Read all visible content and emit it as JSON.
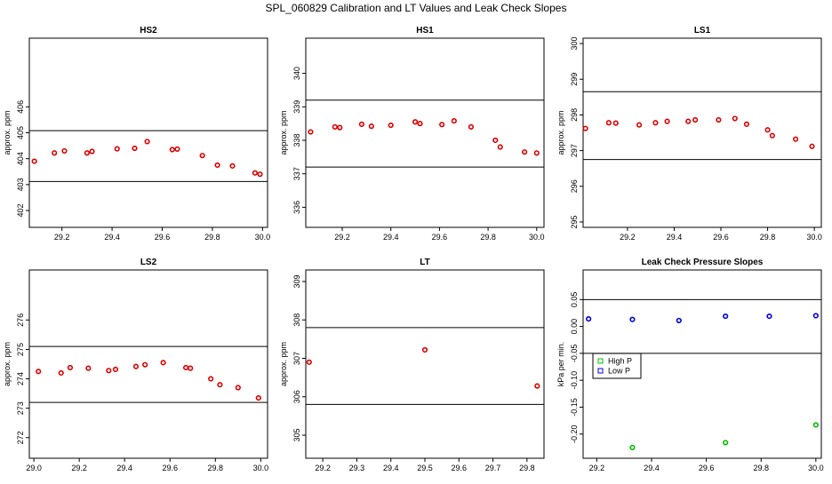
{
  "figure": {
    "title": "SPL_060829  Calibration and LT Values and Leak Check Slopes"
  },
  "chart_data": [
    {
      "id": "hs2",
      "type": "scatter",
      "title": "HS2",
      "ylabel": "approx. ppm",
      "xlim": [
        29.07,
        30.02
      ],
      "ylim": [
        401.35,
        408.65
      ],
      "xticks": [
        "29.2",
        "29.4",
        "29.6",
        "29.8",
        "30.0"
      ],
      "yticks": [
        "402",
        "403",
        "404",
        "405",
        "406"
      ],
      "hlines": [
        405.08,
        403.12
      ],
      "series": [
        {
          "color": "#dd0000",
          "marker": "circle",
          "x": [
            29.09,
            29.17,
            29.21,
            29.3,
            29.32,
            29.42,
            29.49,
            29.54,
            29.64,
            29.66,
            29.76,
            29.82,
            29.88,
            29.97,
            29.99
          ],
          "y": [
            403.9,
            404.22,
            404.3,
            404.22,
            404.28,
            404.38,
            404.4,
            404.66,
            404.35,
            404.37,
            404.12,
            403.75,
            403.72,
            403.45,
            403.4
          ]
        }
      ]
    },
    {
      "id": "hs1",
      "type": "scatter",
      "title": "HS1",
      "ylabel": "approx. ppm",
      "xlim": [
        29.05,
        30.03
      ],
      "ylim": [
        335.4,
        341.05
      ],
      "xticks": [
        "29.2",
        "29.4",
        "29.6",
        "29.8",
        "30.0"
      ],
      "yticks": [
        "336",
        "337",
        "338",
        "339",
        "340"
      ],
      "hlines": [
        339.2,
        337.2
      ],
      "series": [
        {
          "color": "#dd0000",
          "marker": "circle",
          "x": [
            29.07,
            29.17,
            29.19,
            29.28,
            29.32,
            29.4,
            29.5,
            29.52,
            29.61,
            29.66,
            29.73,
            29.83,
            29.85,
            29.95,
            30.0
          ],
          "y": [
            338.25,
            338.4,
            338.38,
            338.48,
            338.42,
            338.45,
            338.55,
            338.5,
            338.47,
            338.58,
            338.4,
            338.0,
            337.8,
            337.65,
            337.62
          ]
        }
      ]
    },
    {
      "id": "ls1",
      "type": "scatter",
      "title": "LS1",
      "ylabel": "approx. ppm",
      "xlim": [
        29.01,
        30.03
      ],
      "ylim": [
        294.85,
        300.15
      ],
      "xticks": [
        "29.2",
        "29.4",
        "29.6",
        "29.8",
        "30.0"
      ],
      "yticks": [
        "295",
        "296",
        "297",
        "298",
        "299",
        "300"
      ],
      "hlines": [
        298.65,
        296.75
      ],
      "series": [
        {
          "color": "#dd0000",
          "marker": "circle",
          "x": [
            29.02,
            29.12,
            29.15,
            29.25,
            29.32,
            29.37,
            29.46,
            29.49,
            29.59,
            29.66,
            29.71,
            29.8,
            29.82,
            29.92,
            29.99
          ],
          "y": [
            297.62,
            297.78,
            297.77,
            297.72,
            297.78,
            297.82,
            297.82,
            297.86,
            297.86,
            297.9,
            297.74,
            297.58,
            297.42,
            297.32,
            297.12
          ]
        }
      ]
    },
    {
      "id": "ls2",
      "type": "scatter",
      "title": "LS2",
      "ylabel": "approx. ppm",
      "xlim": [
        28.98,
        30.03
      ],
      "ylim": [
        271.3,
        277.7
      ],
      "xticks": [
        "29.0",
        "29.2",
        "29.4",
        "29.6",
        "29.8",
        "30.0"
      ],
      "yticks": [
        "272",
        "273",
        "274",
        "275",
        "276"
      ],
      "hlines": [
        275.1,
        273.2
      ],
      "series": [
        {
          "color": "#dd0000",
          "marker": "circle",
          "x": [
            29.02,
            29.12,
            29.16,
            29.24,
            29.33,
            29.36,
            29.45,
            29.49,
            29.57,
            29.67,
            29.69,
            29.78,
            29.82,
            29.9,
            29.99
          ],
          "y": [
            274.25,
            274.2,
            274.38,
            274.36,
            274.28,
            274.32,
            274.42,
            274.48,
            274.55,
            274.38,
            274.36,
            274.0,
            273.8,
            273.7,
            273.35
          ]
        }
      ]
    },
    {
      "id": "lt",
      "type": "scatter",
      "title": "LT",
      "ylabel": "approx. ppm",
      "xlim": [
        29.15,
        29.85
      ],
      "ylim": [
        304.4,
        309.3
      ],
      "xticks": [
        "29.2",
        "29.3",
        "29.4",
        "29.5",
        "29.6",
        "29.7",
        "29.8"
      ],
      "yticks": [
        "305",
        "306",
        "307",
        "308",
        "309"
      ],
      "hlines": [
        307.8,
        305.8
      ],
      "series": [
        {
          "color": "#dd0000",
          "marker": "circle",
          "x": [
            29.16,
            29.5,
            29.83
          ],
          "y": [
            306.9,
            307.22,
            306.28
          ]
        }
      ]
    },
    {
      "id": "leak",
      "type": "scatter",
      "title": "Leak Check Pressure Slopes",
      "ylabel": "kPa per min.",
      "xlim": [
        29.15,
        30.02
      ],
      "ylim": [
        -0.245,
        0.105
      ],
      "xticks": [
        "29.2",
        "29.4",
        "29.6",
        "29.8",
        "30.0"
      ],
      "yticks": [
        "0.05",
        "0.00",
        "-0.05",
        "-0.10",
        "-0.15",
        "-0.20"
      ],
      "hlines": [
        0.05,
        -0.05
      ],
      "legend": {
        "position": "left"
      },
      "series": [
        {
          "name": "High P",
          "color": "#00bb00",
          "marker": "circle",
          "x": [
            29.33,
            29.67,
            30.0
          ],
          "y": [
            -0.225,
            -0.216,
            -0.183
          ]
        },
        {
          "name": "Low P",
          "color": "#0000dd",
          "marker": "circle",
          "x": [
            29.17,
            29.33,
            29.5,
            29.67,
            29.83,
            30.0
          ],
          "y": [
            0.014,
            0.013,
            0.011,
            0.019,
            0.019,
            0.02
          ]
        }
      ]
    }
  ]
}
